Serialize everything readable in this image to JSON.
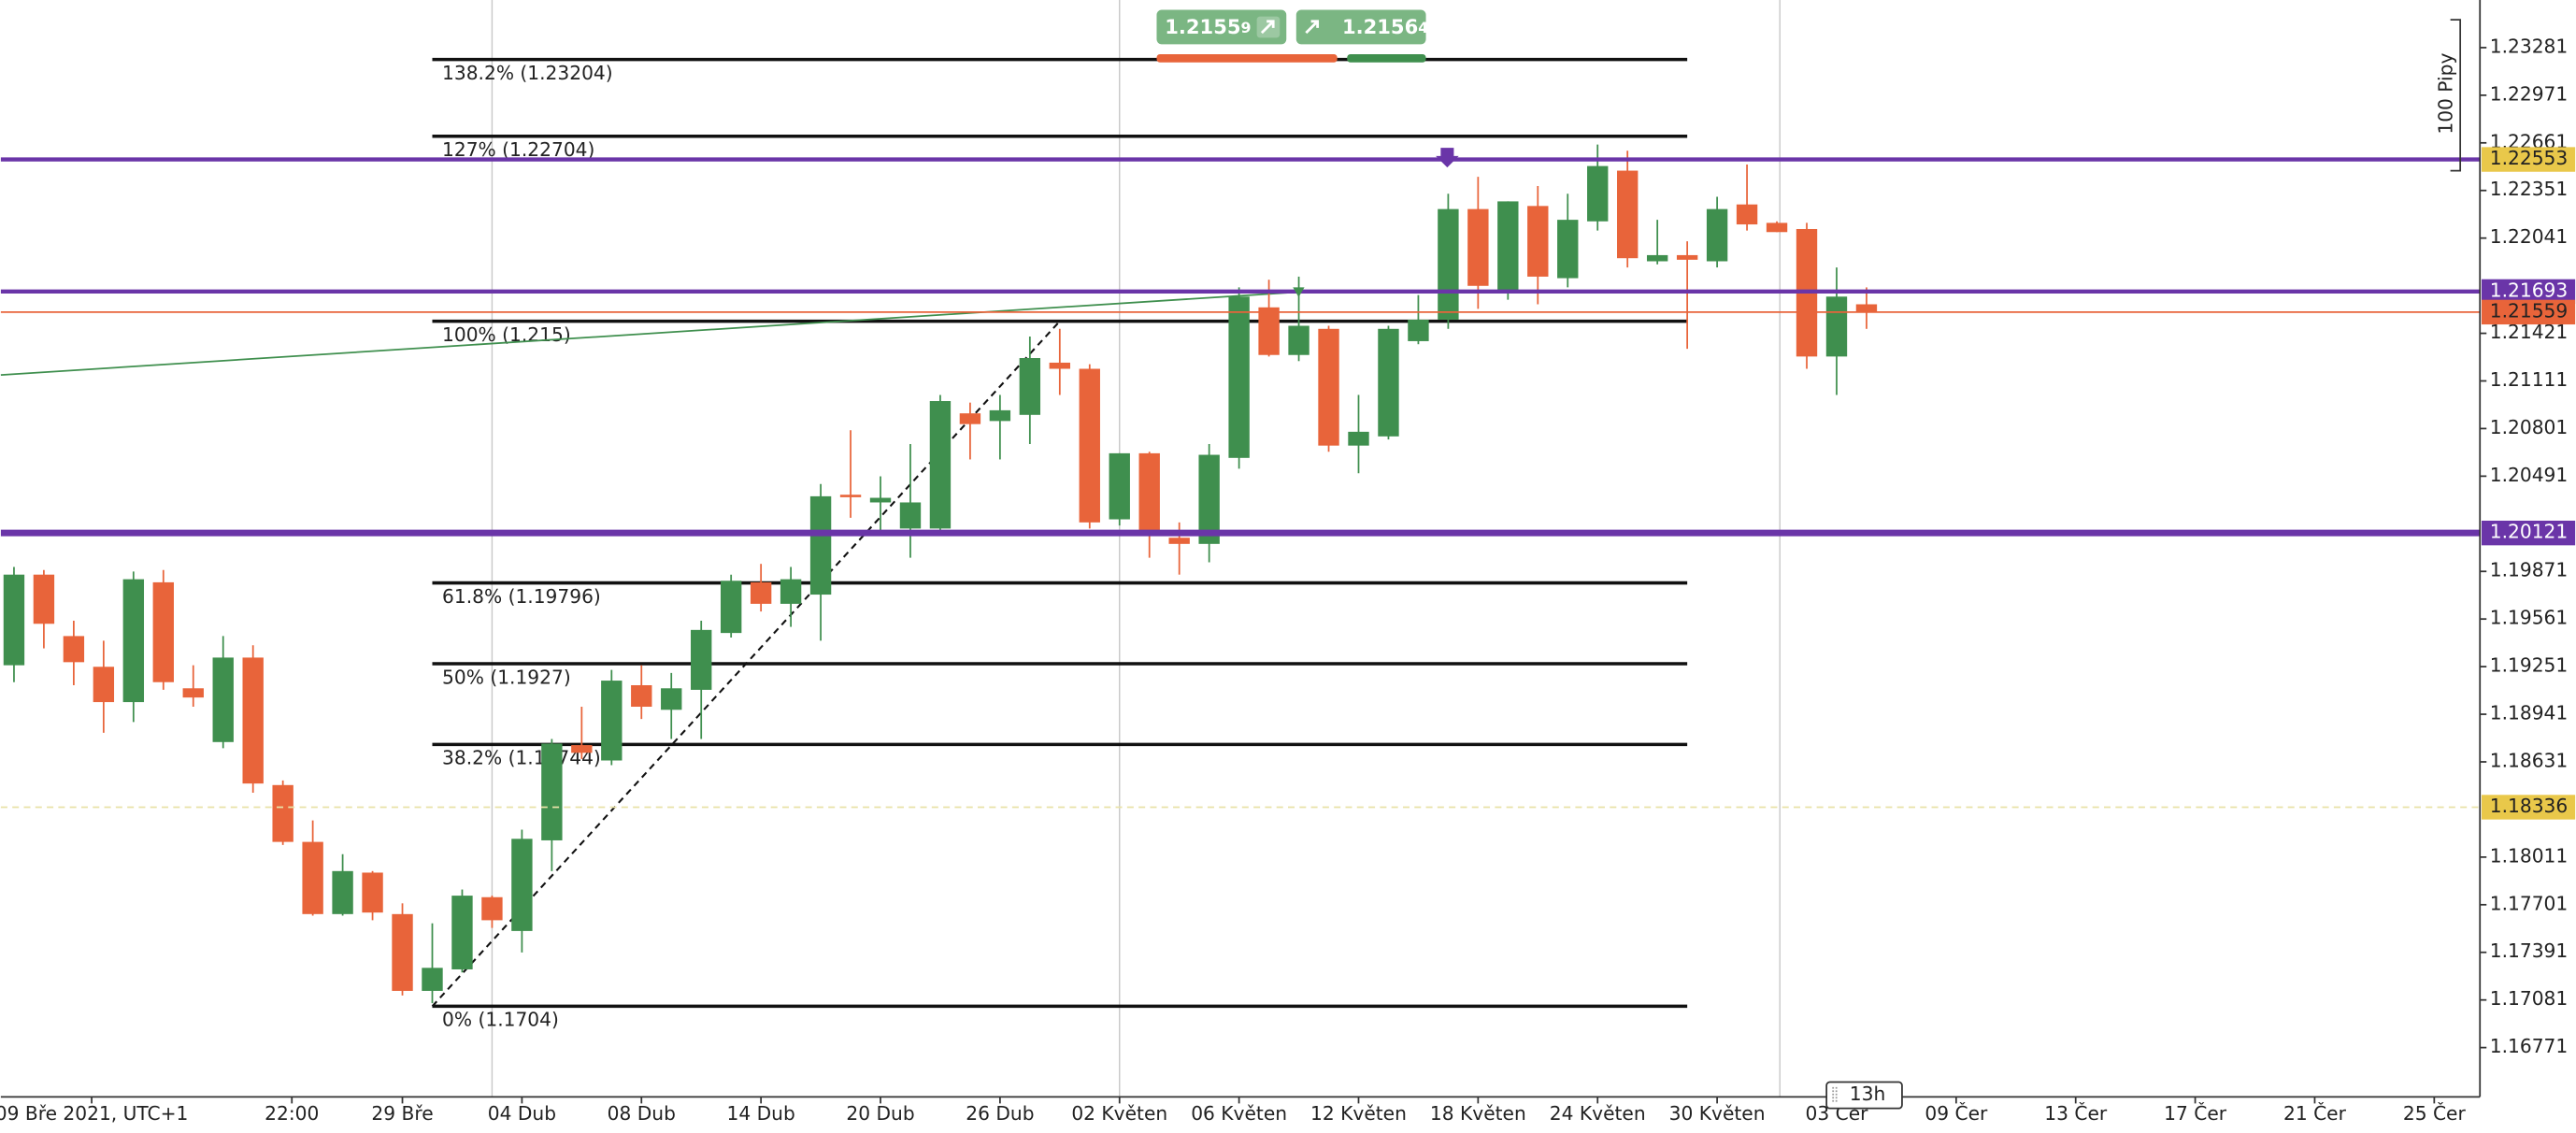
{
  "chart_data": {
    "type": "candlestick",
    "up_color": "#3f8f4e",
    "down_color": "#e8643a",
    "xlim": [
      -0.44,
      82.53
    ],
    "ylim": [
      1.1645,
      1.23591
    ],
    "grid": false,
    "yticks": [
      1.23281,
      1.22971,
      1.22661,
      1.22351,
      1.22041,
      1.21421,
      1.21111,
      1.20801,
      1.20491,
      1.19871,
      1.19561,
      1.19251,
      1.18941,
      1.18631,
      1.18011,
      1.17701,
      1.17391,
      1.17081,
      1.16771
    ],
    "xticks": [
      {
        "value": 2.6,
        "label": "09 Bře 2021, UTC+1"
      },
      {
        "value": 9.3,
        "label": "22:00"
      },
      {
        "value": 13,
        "label": "29 Bře"
      },
      {
        "value": 17,
        "label": "04 Dub"
      },
      {
        "value": 21,
        "label": "08 Dub"
      },
      {
        "value": 25,
        "label": "14 Dub"
      },
      {
        "value": 29,
        "label": "20 Dub"
      },
      {
        "value": 33,
        "label": "26 Dub"
      },
      {
        "value": 37,
        "label": "02 Květen"
      },
      {
        "value": 41,
        "label": "06 Květen"
      },
      {
        "value": 45,
        "label": "12 Květen"
      },
      {
        "value": 49,
        "label": "18 Květen"
      },
      {
        "value": 53,
        "label": "24 Květen"
      },
      {
        "value": 57,
        "label": "30 Květen"
      },
      {
        "value": 61,
        "label": "03 Čer"
      },
      {
        "value": 65,
        "label": "09 Čer"
      },
      {
        "value": 69,
        "label": "13 Čer"
      },
      {
        "value": 73,
        "label": "17 Čer"
      },
      {
        "value": 77,
        "label": "21 Čer"
      },
      {
        "value": 81,
        "label": "25 Čer"
      }
    ],
    "x": [
      0,
      1,
      2,
      3,
      4,
      5,
      6,
      7,
      8,
      9,
      10,
      11,
      12,
      13,
      14,
      15,
      16,
      17,
      18,
      19,
      20,
      21,
      22,
      23,
      24,
      25,
      26,
      27,
      28,
      29,
      30,
      31,
      32,
      33,
      34,
      35,
      36,
      37,
      38,
      39,
      40,
      41,
      42,
      43,
      44,
      45,
      46,
      47,
      48,
      49,
      50,
      51,
      52,
      53,
      54,
      55,
      56,
      57,
      58,
      59,
      60,
      61,
      62
    ],
    "open": [
      1.1926,
      1.1985,
      1.1945,
      1.1925,
      1.1902,
      1.198,
      1.1911,
      1.1876,
      1.1931,
      1.1848,
      1.1811,
      1.1764,
      1.1791,
      1.1764,
      1.1714,
      1.1728,
      1.1775,
      1.1753,
      1.1812,
      1.1874,
      1.1864,
      1.1913,
      1.1897,
      1.191,
      1.1947,
      1.198,
      1.1966,
      1.1972,
      1.2037,
      1.2032,
      1.2015,
      1.2015,
      1.209,
      1.2085,
      1.2089,
      1.2123,
      1.2119,
      1.2021,
      1.2064,
      1.2009,
      1.2005,
      1.2061,
      1.2159,
      1.2128,
      1.2145,
      1.2069,
      1.2075,
      1.2137,
      1.2151,
      1.2223,
      1.2168,
      1.2225,
      1.2178,
      1.2215,
      1.2248,
      1.2189,
      1.2193,
      1.2189,
      1.2226,
      1.2214,
      1.221,
      1.2127,
      1.2161
    ],
    "high": [
      1.199,
      1.1988,
      1.1955,
      1.1942,
      1.1987,
      1.1988,
      1.1926,
      1.1945,
      1.1939,
      1.1851,
      1.1825,
      1.1803,
      1.1792,
      1.1771,
      1.1758,
      1.178,
      1.1776,
      1.1819,
      1.1878,
      1.1899,
      1.1923,
      1.1926,
      1.1921,
      1.1955,
      1.1985,
      1.1992,
      1.199,
      1.2044,
      1.2079,
      1.2049,
      1.207,
      1.2102,
      1.2097,
      1.2102,
      1.214,
      1.2145,
      1.2122,
      1.2064,
      1.2065,
      1.2019,
      1.207,
      1.2172,
      1.2177,
      1.2179,
      1.2147,
      1.2102,
      1.2147,
      1.2167,
      1.2233,
      1.2244,
      1.2228,
      1.2238,
      1.2233,
      1.2265,
      1.2261,
      1.2216,
      1.2202,
      1.2231,
      1.2252,
      1.2215,
      1.2214,
      1.2185,
      1.2172
    ],
    "low": [
      1.1915,
      1.1937,
      1.1913,
      1.1882,
      1.1889,
      1.191,
      1.1899,
      1.1872,
      1.1843,
      1.1809,
      1.1763,
      1.1763,
      1.176,
      1.1711,
      1.1706,
      1.1726,
      1.1755,
      1.1739,
      1.1792,
      1.1865,
      1.1861,
      1.1891,
      1.1878,
      1.1878,
      1.1944,
      1.1961,
      1.1951,
      1.1942,
      1.2022,
      1.2012,
      1.1996,
      1.2012,
      1.206,
      1.206,
      1.207,
      1.2102,
      1.2015,
      1.2017,
      1.1996,
      1.1985,
      1.1993,
      1.2054,
      1.2127,
      1.2124,
      1.2065,
      1.2051,
      1.2073,
      1.2135,
      1.2145,
      1.2158,
      1.2164,
      1.2161,
      1.2172,
      1.2209,
      1.2185,
      1.2187,
      1.2132,
      1.2185,
      1.2209,
      1.2208,
      1.2119,
      1.2102,
      1.2145
    ],
    "close": [
      1.1985,
      1.1953,
      1.1928,
      1.1902,
      1.1982,
      1.1915,
      1.1905,
      1.1931,
      1.1849,
      1.1811,
      1.1764,
      1.1792,
      1.1765,
      1.1714,
      1.1729,
      1.1776,
      1.176,
      1.1813,
      1.1875,
      1.1869,
      1.1916,
      1.1899,
      1.1911,
      1.1949,
      1.1981,
      1.1966,
      1.1982,
      1.2036,
      1.2036,
      1.2035,
      1.2032,
      1.2098,
      1.2083,
      1.2092,
      1.2126,
      1.2119,
      1.2019,
      1.2064,
      1.2012,
      1.2005,
      1.2063,
      1.2166,
      1.2128,
      1.2147,
      1.2069,
      1.2078,
      1.2145,
      1.2151,
      1.2223,
      1.2173,
      1.2228,
      1.2179,
      1.2216,
      1.2251,
      1.2191,
      1.2193,
      1.219,
      1.2223,
      1.2213,
      1.2208,
      1.2127,
      1.2166,
      1.2156
    ],
    "fib_xrange": [
      14,
      56
    ],
    "fib_levels": [
      {
        "value": 1.23204,
        "label": "138.2% (1.23204)"
      },
      {
        "value": 1.22704,
        "label": "127% (1.22704)"
      },
      {
        "value": 1.215,
        "label": "100% (1.215)"
      },
      {
        "value": 1.19796,
        "label": "61.8% (1.19796)"
      },
      {
        "value": 1.1927,
        "label": "50% (1.1927)"
      },
      {
        "value": 1.18744,
        "label": "38.2% (1.18744)"
      },
      {
        "value": 1.1704,
        "label": "0% (1.1704)"
      }
    ],
    "price_lines": [
      {
        "value": 1.22553,
        "color": "#6a35a8",
        "width": 2.5,
        "label_bg": "#e9c84a",
        "label_color": "#222"
      },
      {
        "value": 1.21693,
        "color": "#6a35a8",
        "width": 2.5,
        "label_bg": "#6a35a8",
        "label_color": "#fff"
      },
      {
        "value": 1.21559,
        "color": "#e8643a",
        "width": 1,
        "label_bg": "#e8643a",
        "label_color": "#222"
      },
      {
        "value": 1.20121,
        "color": "#6a35a8",
        "width": 4,
        "label_bg": "#6a35a8",
        "label_color": "#fff"
      },
      {
        "value": 1.18336,
        "color": "#e9e2a8",
        "width": 1,
        "dash": "4 3",
        "label_bg": "#e9c84a",
        "label_color": "#222"
      }
    ],
    "trend_lines": [
      {
        "x": [
          -0.44,
          43
        ],
        "y": [
          1.2115,
          1.2169
        ],
        "color": "#3f8f4e",
        "width": 1
      },
      {
        "x": [
          14,
          35
        ],
        "y": [
          1.1704,
          1.215
        ],
        "color": "#111",
        "width": 1.2,
        "dash": "4 3"
      }
    ],
    "separators": [
      16,
      37,
      59.1
    ],
    "trade": {
      "sell_main": "1.2155",
      "sell_tail": "9",
      "buy_main": "1.2156",
      "buy_tail": "4"
    },
    "range_label": "100 Pipy",
    "cursor_label": "13h"
  }
}
